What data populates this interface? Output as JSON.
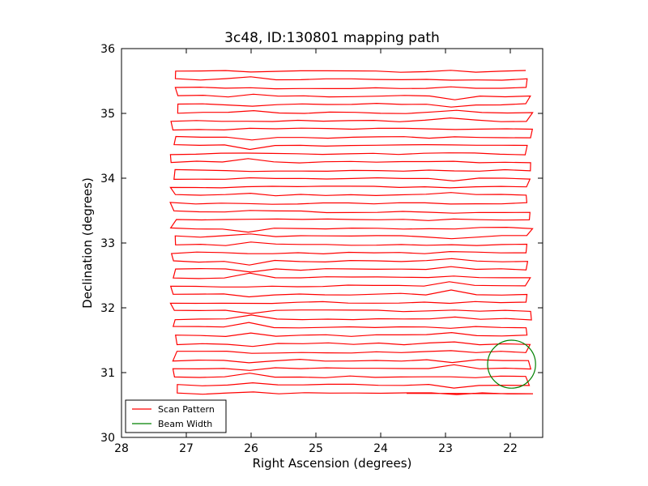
{
  "chart_data": {
    "type": "line",
    "title": "3c48, ID:130801 mapping path",
    "xlabel": "Right Ascension (degrees)",
    "ylabel": "Declination (degrees)",
    "xlim": [
      28,
      21.5
    ],
    "ylim": [
      30,
      36
    ],
    "x_reversed": true,
    "xticks": [
      28,
      27,
      26,
      25,
      24,
      23,
      22
    ],
    "yticks": [
      30,
      31,
      32,
      33,
      34,
      35,
      36
    ],
    "grid": false,
    "legend_position": "lower-left",
    "series": [
      {
        "name": "Scan Pattern",
        "color": "#ff0000",
        "kind": "raster-scan",
        "dec_start": 30.68,
        "dec_end": 35.65,
        "row_count": 40,
        "ra_min": 21.6,
        "ra_max": 27.3,
        "start_point": [
          23.6,
          30.68
        ]
      },
      {
        "name": "Beam Width",
        "color": "#008000",
        "kind": "circle",
        "center": [
          21.98,
          31.13
        ],
        "radius_deg": 0.37
      }
    ]
  }
}
